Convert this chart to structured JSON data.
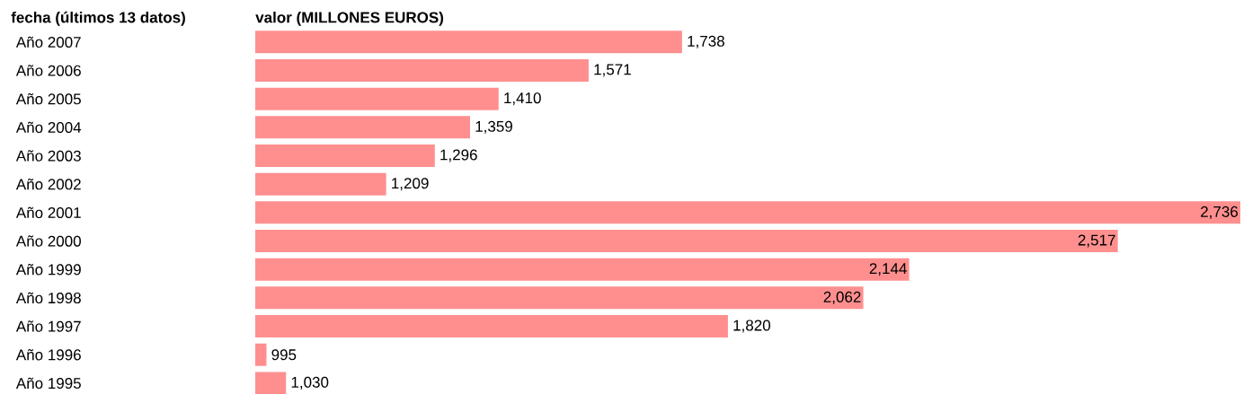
{
  "chart_data": {
    "type": "bar",
    "orientation": "horizontal",
    "xlabel": "valor (MILLONES EUROS)",
    "ylabel": "fecha (últimos 13 datos)",
    "categories": [
      "Año 2007",
      "Año 2006",
      "Año 2005",
      "Año 2004",
      "Año 2003",
      "Año 2002",
      "Año 2001",
      "Año 2000",
      "Año 1999",
      "Año 1998",
      "Año 1997",
      "Año 1996",
      "Año 1995"
    ],
    "values": [
      1738,
      1571,
      1410,
      1359,
      1296,
      1209,
      2736,
      2517,
      2144,
      2062,
      1820,
      995,
      1030
    ],
    "value_labels": [
      "1,738",
      "1,571",
      "1,410",
      "1,359",
      "1,296",
      "1,209",
      "2,736",
      "2,517",
      "2,144",
      "2,062",
      "1,820",
      "995",
      "1,030"
    ],
    "color": "#ff8f8f",
    "xlim": [
      975,
      2736
    ],
    "tick_labels": "y"
  }
}
